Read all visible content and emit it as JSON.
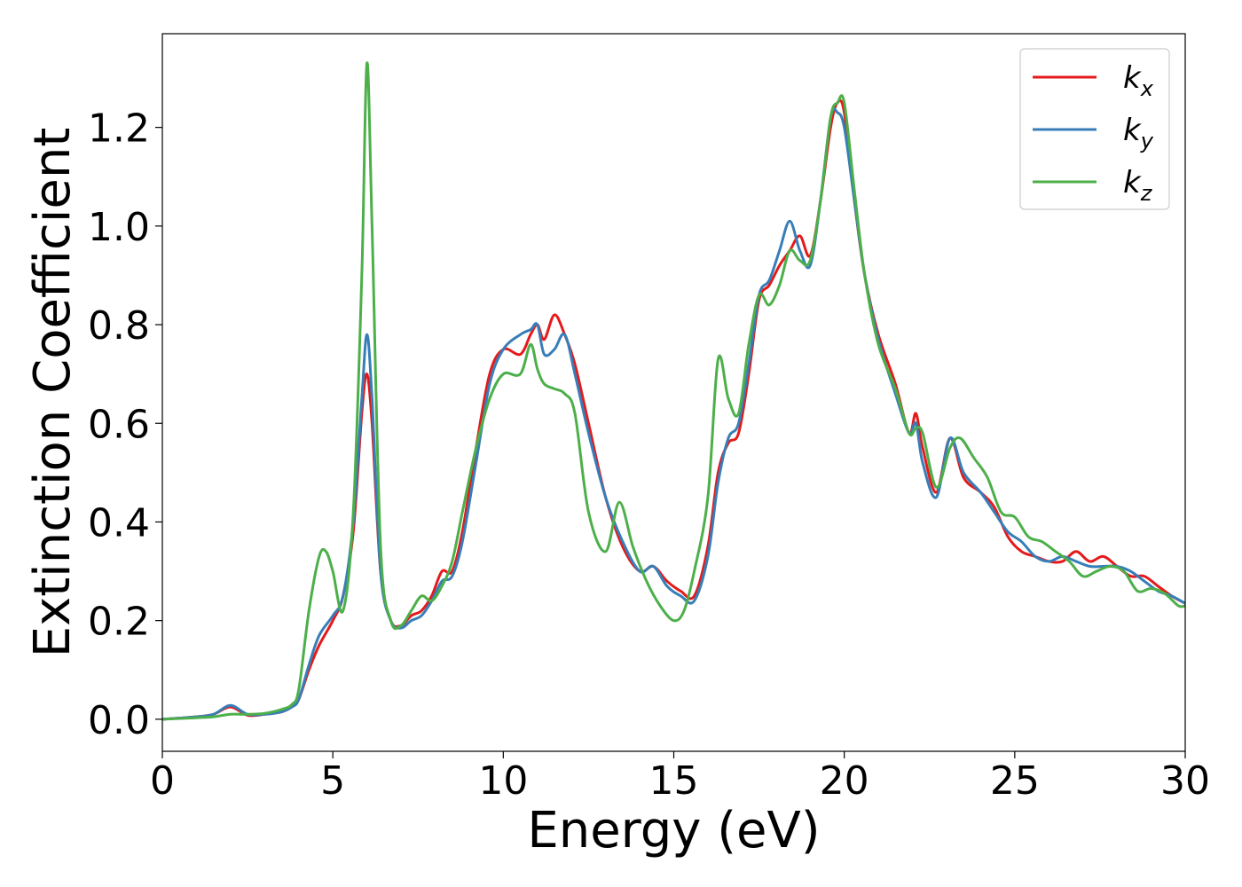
{
  "chart_data": {
    "type": "line",
    "title": "",
    "xlabel": "Energy (eV)",
    "ylabel": "Extinction Coefficient",
    "xlim": [
      0,
      30
    ],
    "ylim": [
      -0.065,
      1.39
    ],
    "xticks": [
      0,
      5,
      10,
      15,
      20,
      25,
      30
    ],
    "xtick_labels": [
      "0",
      "5",
      "10",
      "15",
      "20",
      "25",
      "30"
    ],
    "yticks": [
      0.0,
      0.2,
      0.4,
      0.6,
      0.8,
      1.0,
      1.2
    ],
    "ytick_labels": [
      "0.0",
      "0.2",
      "0.4",
      "0.6",
      "0.8",
      "1.0",
      "1.2"
    ],
    "grid": false,
    "legend_position": "top-right",
    "series": [
      {
        "name": "k",
        "subscript": "x",
        "color": "#e41a1c",
        "x": [
          0,
          1,
          1.5,
          2,
          2.5,
          3,
          3.5,
          3.8,
          4,
          4.3,
          4.6,
          5,
          5.3,
          5.6,
          5.85,
          6,
          6.15,
          6.4,
          6.7,
          7,
          7.3,
          7.6,
          7.9,
          8.2,
          8.5,
          8.8,
          9.2,
          9.6,
          10,
          10.5,
          10.8,
          11,
          11.2,
          11.5,
          11.8,
          12.1,
          12.5,
          13,
          13.5,
          14,
          14.4,
          14.8,
          15.2,
          15.6,
          16,
          16.3,
          16.6,
          16.9,
          17.2,
          17.5,
          17.8,
          18.1,
          18.4,
          18.7,
          19,
          19.3,
          19.6,
          19.8,
          20,
          20.3,
          20.6,
          21,
          21.5,
          21.9,
          22.1,
          22.3,
          22.7,
          23.1,
          23.5,
          24,
          24.4,
          24.8,
          25.2,
          25.6,
          26,
          26.4,
          26.8,
          27.2,
          27.6,
          28,
          28.4,
          28.8,
          29.2,
          29.6,
          30
        ],
        "y": [
          0.0,
          0.005,
          0.01,
          0.025,
          0.008,
          0.01,
          0.015,
          0.025,
          0.04,
          0.1,
          0.15,
          0.2,
          0.25,
          0.38,
          0.62,
          0.7,
          0.6,
          0.3,
          0.2,
          0.19,
          0.21,
          0.22,
          0.25,
          0.3,
          0.3,
          0.38,
          0.55,
          0.7,
          0.75,
          0.74,
          0.78,
          0.8,
          0.77,
          0.82,
          0.78,
          0.72,
          0.6,
          0.45,
          0.35,
          0.3,
          0.31,
          0.28,
          0.26,
          0.25,
          0.35,
          0.5,
          0.56,
          0.58,
          0.7,
          0.85,
          0.88,
          0.92,
          0.95,
          0.98,
          0.94,
          1.05,
          1.2,
          1.25,
          1.23,
          1.05,
          0.9,
          0.78,
          0.68,
          0.58,
          0.62,
          0.55,
          0.46,
          0.57,
          0.49,
          0.46,
          0.43,
          0.37,
          0.34,
          0.33,
          0.32,
          0.32,
          0.34,
          0.32,
          0.33,
          0.31,
          0.29,
          0.29,
          0.27,
          0.25,
          0.235
        ]
      },
      {
        "name": "k",
        "subscript": "y",
        "color": "#377eb8",
        "x": [
          0,
          1,
          1.5,
          2,
          2.5,
          3,
          3.5,
          3.8,
          4,
          4.3,
          4.6,
          5,
          5.3,
          5.6,
          5.85,
          6,
          6.15,
          6.4,
          6.7,
          7,
          7.3,
          7.6,
          7.9,
          8.2,
          8.5,
          8.8,
          9.2,
          9.6,
          10,
          10.5,
          10.8,
          11,
          11.2,
          11.5,
          11.8,
          12.1,
          12.5,
          13,
          13.5,
          14,
          14.4,
          14.8,
          15.2,
          15.6,
          16,
          16.3,
          16.6,
          16.9,
          17.2,
          17.5,
          17.8,
          18.1,
          18.4,
          18.7,
          19,
          19.3,
          19.6,
          19.8,
          20,
          20.3,
          20.6,
          21,
          21.5,
          21.9,
          22.1,
          22.3,
          22.7,
          23.1,
          23.5,
          24,
          24.4,
          24.8,
          25.2,
          25.6,
          26,
          26.4,
          26.8,
          27.2,
          27.6,
          28,
          28.4,
          28.8,
          29.2,
          29.6,
          30
        ],
        "y": [
          0.0,
          0.005,
          0.01,
          0.028,
          0.01,
          0.01,
          0.015,
          0.025,
          0.04,
          0.11,
          0.17,
          0.21,
          0.25,
          0.4,
          0.65,
          0.78,
          0.65,
          0.3,
          0.2,
          0.185,
          0.2,
          0.21,
          0.24,
          0.28,
          0.29,
          0.36,
          0.52,
          0.68,
          0.75,
          0.78,
          0.79,
          0.8,
          0.74,
          0.75,
          0.78,
          0.7,
          0.58,
          0.45,
          0.36,
          0.3,
          0.31,
          0.27,
          0.25,
          0.24,
          0.33,
          0.48,
          0.57,
          0.6,
          0.72,
          0.86,
          0.89,
          0.95,
          1.01,
          0.95,
          0.92,
          1.05,
          1.22,
          1.23,
          1.2,
          1.05,
          0.9,
          0.77,
          0.66,
          0.58,
          0.6,
          0.52,
          0.45,
          0.57,
          0.5,
          0.46,
          0.42,
          0.38,
          0.36,
          0.33,
          0.32,
          0.33,
          0.32,
          0.31,
          0.31,
          0.31,
          0.3,
          0.28,
          0.26,
          0.25,
          0.235
        ]
      },
      {
        "name": "k",
        "subscript": "z",
        "color": "#4daf4a",
        "x": [
          0,
          1,
          1.5,
          2,
          2.5,
          3,
          3.5,
          3.8,
          4,
          4.3,
          4.6,
          4.8,
          5,
          5.3,
          5.6,
          5.85,
          6,
          6.15,
          6.4,
          6.7,
          7,
          7.3,
          7.6,
          7.9,
          8.2,
          8.5,
          8.8,
          9.2,
          9.6,
          10,
          10.5,
          10.8,
          11,
          11.2,
          11.5,
          11.8,
          12.1,
          12.5,
          13,
          13.4,
          13.8,
          14.2,
          14.6,
          15,
          15.3,
          15.6,
          16,
          16.3,
          16.6,
          16.9,
          17.2,
          17.5,
          17.8,
          18.1,
          18.4,
          18.7,
          19,
          19.3,
          19.6,
          19.8,
          20,
          20.3,
          20.6,
          21,
          21.5,
          21.9,
          22.1,
          22.3,
          22.7,
          23.1,
          23.4,
          23.8,
          24.2,
          24.6,
          25,
          25.4,
          25.8,
          26.2,
          26.6,
          27,
          27.4,
          27.8,
          28.2,
          28.6,
          29,
          29.4,
          29.8,
          30
        ],
        "y": [
          0.0,
          0.003,
          0.005,
          0.01,
          0.01,
          0.012,
          0.02,
          0.03,
          0.06,
          0.22,
          0.33,
          0.34,
          0.3,
          0.22,
          0.42,
          0.9,
          1.33,
          1.0,
          0.35,
          0.2,
          0.19,
          0.22,
          0.25,
          0.24,
          0.27,
          0.32,
          0.42,
          0.55,
          0.65,
          0.7,
          0.7,
          0.76,
          0.71,
          0.68,
          0.67,
          0.66,
          0.62,
          0.42,
          0.34,
          0.44,
          0.35,
          0.28,
          0.23,
          0.2,
          0.22,
          0.3,
          0.45,
          0.73,
          0.65,
          0.62,
          0.76,
          0.86,
          0.84,
          0.88,
          0.95,
          0.93,
          0.93,
          1.05,
          1.22,
          1.25,
          1.25,
          1.07,
          0.9,
          0.76,
          0.67,
          0.58,
          0.59,
          0.58,
          0.47,
          0.55,
          0.57,
          0.53,
          0.49,
          0.42,
          0.41,
          0.37,
          0.36,
          0.34,
          0.32,
          0.29,
          0.3,
          0.31,
          0.3,
          0.26,
          0.265,
          0.255,
          0.23,
          0.23
        ]
      }
    ]
  }
}
